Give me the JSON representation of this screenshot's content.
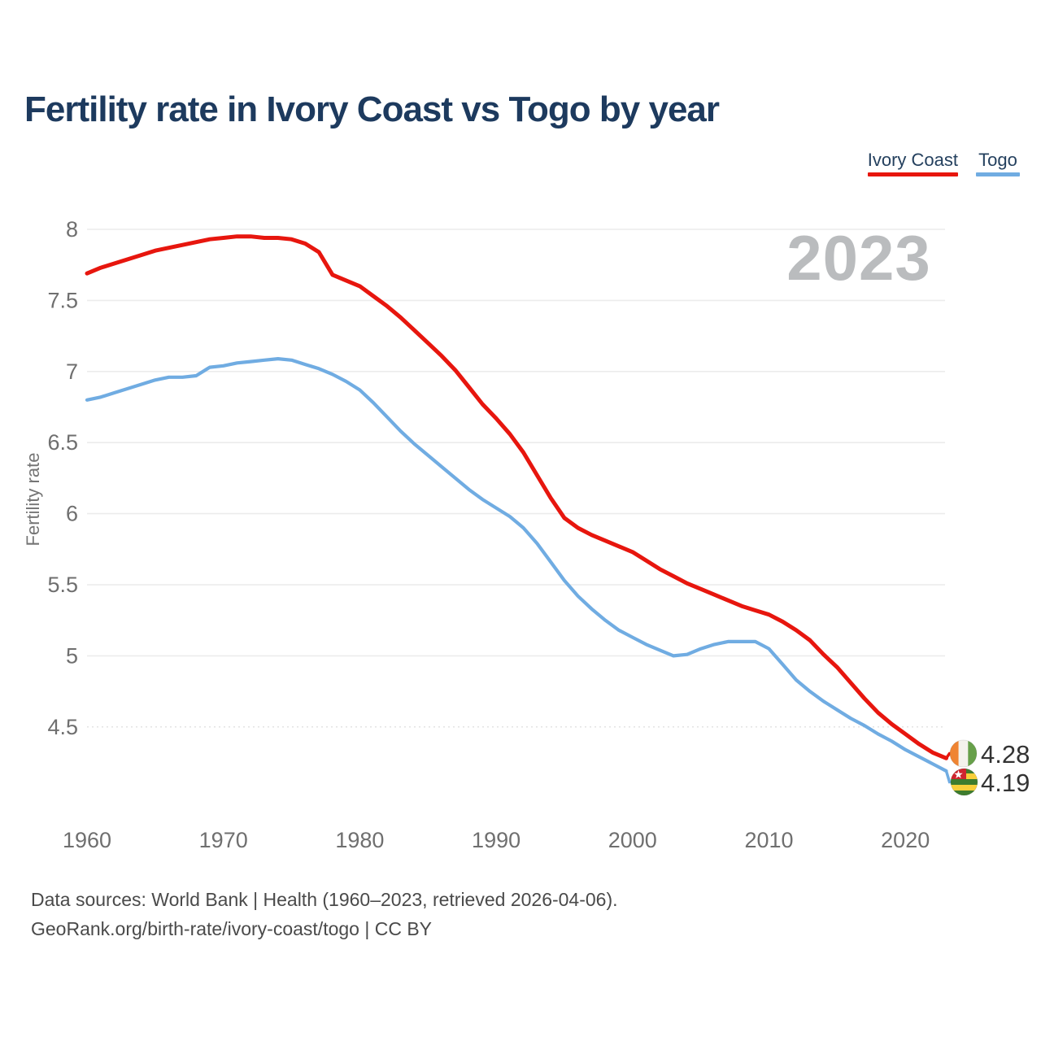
{
  "title": "Fertility rate in Ivory Coast vs Togo by year",
  "watermark": "2023",
  "legend": [
    {
      "label": "Ivory Coast",
      "color": "#e7160e"
    },
    {
      "label": "Togo",
      "color": "#70ace2"
    }
  ],
  "end_labels": [
    {
      "series": "Ivory Coast",
      "value": "4.28",
      "color": "#e7160e"
    },
    {
      "series": "Togo",
      "value": "4.19",
      "color": "#70ace2"
    }
  ],
  "footer": {
    "line1": "Data sources: World Bank | Health (1960–2023, retrieved 2026-04-06).",
    "line2": "GeoRank.org/birth-rate/ivory-coast/togo | CC BY"
  },
  "chart_data": {
    "type": "line",
    "title": "Fertility rate in Ivory Coast vs Togo by year",
    "xlabel": "",
    "ylabel": "Fertility rate",
    "x_ticks": [
      1960,
      1970,
      1980,
      1990,
      2000,
      2010,
      2020
    ],
    "y_ticks": [
      8,
      7.5,
      7,
      6.5,
      6,
      5.5,
      5,
      4.5
    ],
    "xlim": [
      1960,
      2023
    ],
    "ylim": [
      4.0,
      8.0
    ],
    "grid": "horizontal",
    "legend_position": "top-right",
    "x": [
      1960,
      1961,
      1962,
      1963,
      1964,
      1965,
      1966,
      1967,
      1968,
      1969,
      1970,
      1971,
      1972,
      1973,
      1974,
      1975,
      1976,
      1977,
      1978,
      1979,
      1980,
      1981,
      1982,
      1983,
      1984,
      1985,
      1986,
      1987,
      1988,
      1989,
      1990,
      1991,
      1992,
      1993,
      1994,
      1995,
      1996,
      1997,
      1998,
      1999,
      2000,
      2001,
      2002,
      2003,
      2004,
      2005,
      2006,
      2007,
      2008,
      2009,
      2010,
      2011,
      2012,
      2013,
      2014,
      2015,
      2016,
      2017,
      2018,
      2019,
      2020,
      2021,
      2022,
      2023
    ],
    "series": [
      {
        "name": "Ivory Coast",
        "color": "#e7160e",
        "values": [
          7.69,
          7.73,
          7.76,
          7.79,
          7.82,
          7.85,
          7.87,
          7.89,
          7.91,
          7.93,
          7.94,
          7.95,
          7.95,
          7.94,
          7.94,
          7.93,
          7.9,
          7.84,
          7.68,
          7.64,
          7.6,
          7.53,
          7.46,
          7.38,
          7.29,
          7.2,
          7.11,
          7.01,
          6.89,
          6.77,
          6.67,
          6.56,
          6.43,
          6.27,
          6.11,
          5.97,
          5.9,
          5.85,
          5.81,
          5.77,
          5.73,
          5.67,
          5.61,
          5.56,
          5.51,
          5.47,
          5.43,
          5.39,
          5.35,
          5.32,
          5.29,
          5.24,
          5.18,
          5.11,
          5.01,
          4.92,
          4.81,
          4.7,
          4.6,
          4.52,
          4.45,
          4.38,
          4.32,
          4.28
        ]
      },
      {
        "name": "Togo",
        "color": "#70ace2",
        "values": [
          6.8,
          6.82,
          6.85,
          6.88,
          6.91,
          6.94,
          6.96,
          6.96,
          6.97,
          7.03,
          7.04,
          7.06,
          7.07,
          7.08,
          7.09,
          7.08,
          7.05,
          7.02,
          6.98,
          6.93,
          6.87,
          6.78,
          6.68,
          6.58,
          6.49,
          6.41,
          6.33,
          6.25,
          6.17,
          6.1,
          6.04,
          5.98,
          5.9,
          5.79,
          5.66,
          5.53,
          5.42,
          5.33,
          5.25,
          5.18,
          5.13,
          5.08,
          5.04,
          5.0,
          5.01,
          5.05,
          5.08,
          5.1,
          5.1,
          5.1,
          5.05,
          4.94,
          4.83,
          4.75,
          4.68,
          4.62,
          4.56,
          4.51,
          4.45,
          4.4,
          4.34,
          4.29,
          4.24,
          4.19
        ]
      }
    ]
  }
}
